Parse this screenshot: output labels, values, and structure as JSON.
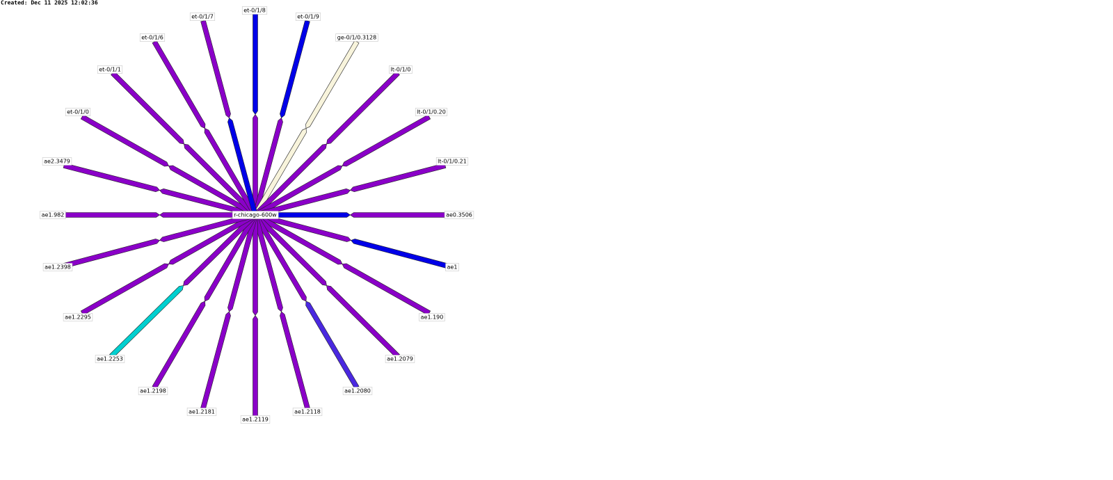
{
  "created": "Created: Dec 11 2025 12:02:36",
  "center": {
    "label": "r-chicago-600w"
  },
  "nodes": [
    {
      "label": "et-0/1/8",
      "color_outer": "#0000e8",
      "color_inner": "#8a00c8"
    },
    {
      "label": "et-0/1/9",
      "color_outer": "#0000e8",
      "color_inner": "#8a00c8"
    },
    {
      "label": "ge-0/1/0.3128",
      "color_outer": "#f8f4dc",
      "color_inner": "#f8f4dc"
    },
    {
      "label": "lt-0/1/0",
      "color_outer": "#8a00c8",
      "color_inner": "#8a00c8"
    },
    {
      "label": "lt-0/1/0.20",
      "color_outer": "#8a00c8",
      "color_inner": "#8a00c8"
    },
    {
      "label": "lt-0/1/0.21",
      "color_outer": "#8a00c8",
      "color_inner": "#8a00c8"
    },
    {
      "label": "ae0.3506",
      "color_outer": "#8a00c8",
      "color_inner": "#0000e8"
    },
    {
      "label": "ae1",
      "color_outer": "#0000e8",
      "color_inner": "#8a00c8"
    },
    {
      "label": "ae1.190",
      "color_outer": "#8a00c8",
      "color_inner": "#8a00c8"
    },
    {
      "label": "ae1.2079",
      "color_outer": "#8a00c8",
      "color_inner": "#8a00c8"
    },
    {
      "label": "ae1.2080",
      "color_outer": "#4a28e0",
      "color_inner": "#8a00c8"
    },
    {
      "label": "ae1.2118",
      "color_outer": "#8a00c8",
      "color_inner": "#8a00c8"
    },
    {
      "label": "ae1.2119",
      "color_outer": "#8a00c8",
      "color_inner": "#8a00c8"
    },
    {
      "label": "ae1.2181",
      "color_outer": "#8a00c8",
      "color_inner": "#8a00c8"
    },
    {
      "label": "ae1.2198",
      "color_outer": "#8a00c8",
      "color_inner": "#8a00c8"
    },
    {
      "label": "ae1.2253",
      "color_outer": "#00d0d0",
      "color_inner": "#8a00c8"
    },
    {
      "label": "ae1.2295",
      "color_outer": "#8a00c8",
      "color_inner": "#8a00c8"
    },
    {
      "label": "ae1.2398",
      "color_outer": "#8a00c8",
      "color_inner": "#8a00c8"
    },
    {
      "label": "ae1.982",
      "color_outer": "#8a00c8",
      "color_inner": "#8a00c8"
    },
    {
      "label": "ae2.3479",
      "color_outer": "#8a00c8",
      "color_inner": "#8a00c8"
    },
    {
      "label": "et-0/1/0",
      "color_outer": "#8a00c8",
      "color_inner": "#8a00c8"
    },
    {
      "label": "et-0/1/1",
      "color_outer": "#8a00c8",
      "color_inner": "#8a00c8"
    },
    {
      "label": "et-0/1/6",
      "color_outer": "#8a00c8",
      "color_inner": "#8a00c8"
    },
    {
      "label": "et-0/1/7",
      "color_outer": "#8a00c8",
      "color_inner": "#0000e8"
    }
  ]
}
